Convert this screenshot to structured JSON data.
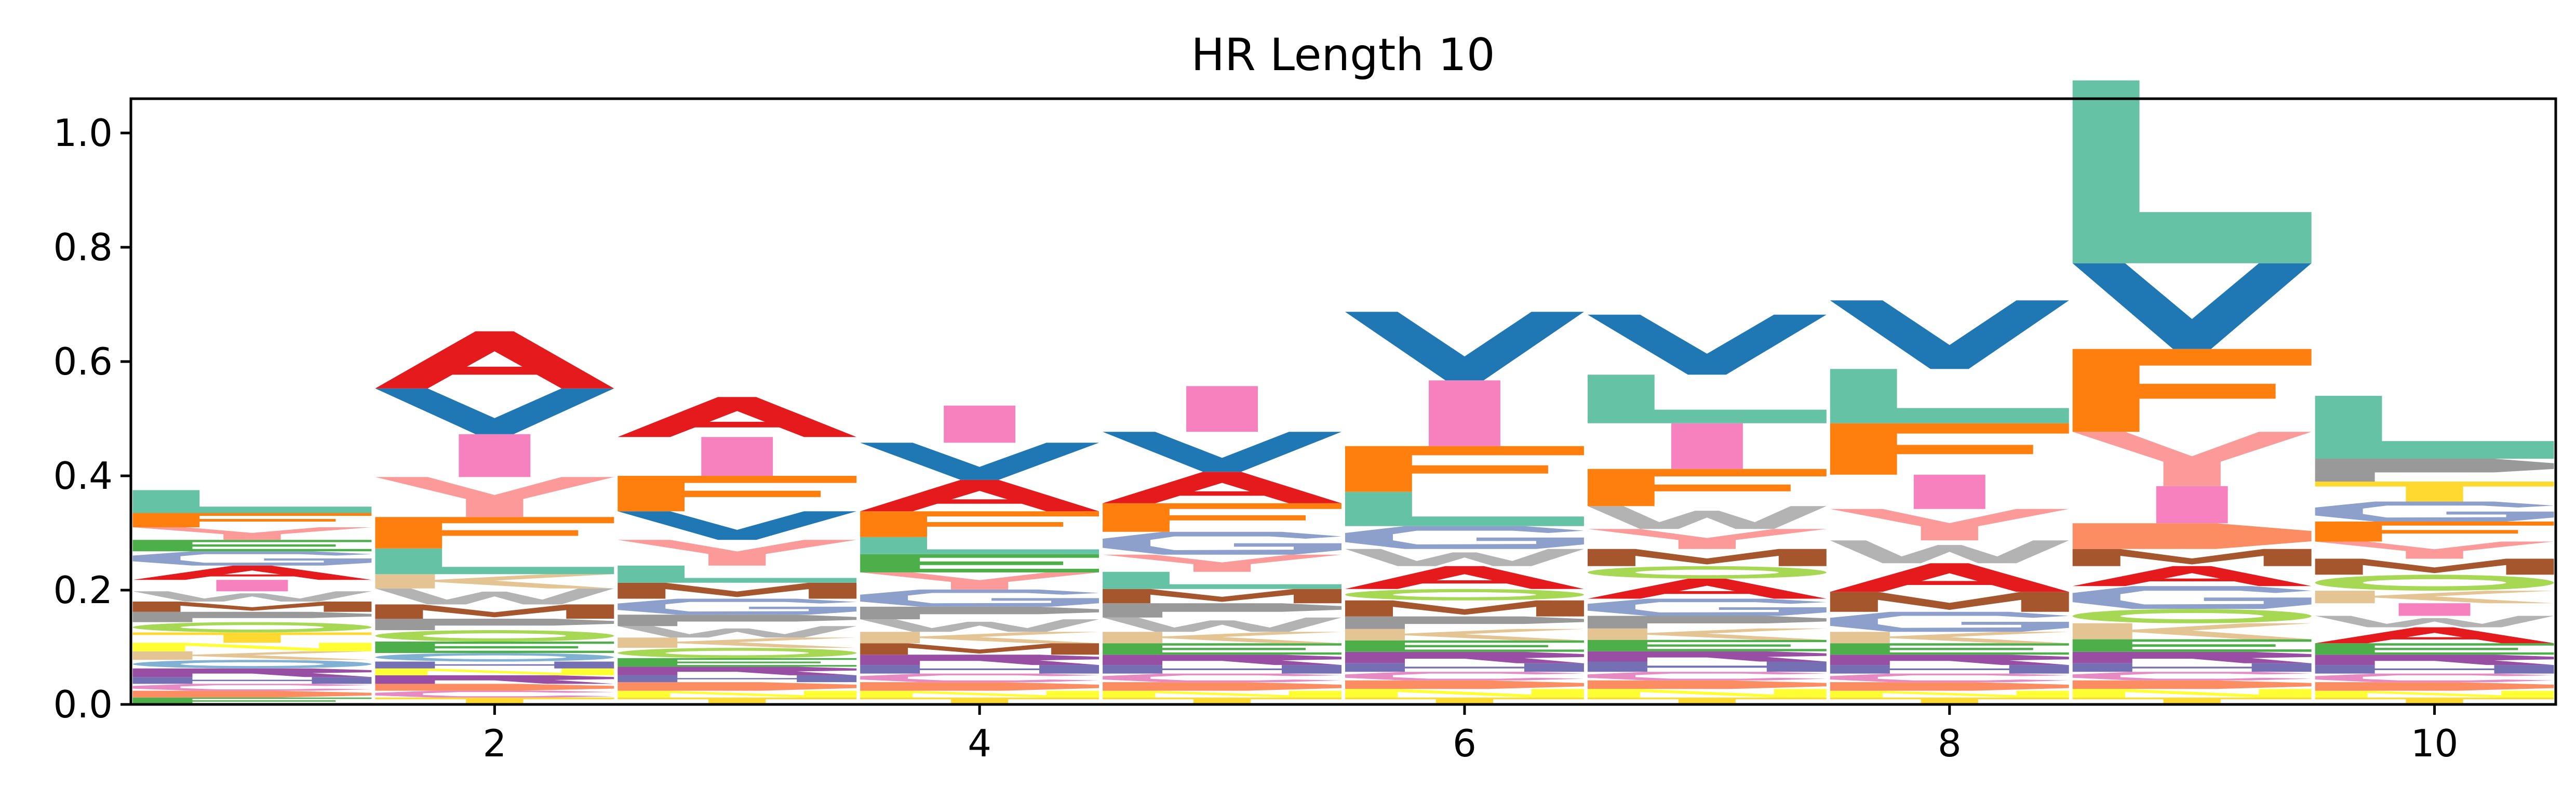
{
  "chart_data": {
    "type": "sequence-logo",
    "title": "HR Length 10",
    "xlabel": "",
    "ylabel": "",
    "xlim": [
      0.5,
      10.5
    ],
    "ylim": [
      0.0,
      1.06
    ],
    "x_ticks": [
      2,
      4,
      6,
      8,
      10
    ],
    "y_ticks": [
      0.0,
      0.2,
      0.4,
      0.6,
      0.8,
      1.0
    ],
    "y_tick_labels": [
      "0.0",
      "0.2",
      "0.4",
      "0.6",
      "0.8",
      "1.0"
    ],
    "grid": false,
    "colors": {
      "A": "#e41a1c",
      "V": "#1f77b4",
      "L": "#66c2a5",
      "F": "#ff7f0e",
      "I": "#f781bf",
      "Y": "#fb9a99",
      "W": "#b3b3b3",
      "M": "#a6562d",
      "G": "#8da0cb",
      "P": "#999999",
      "S": "#a6d854",
      "T": "#ffd92f",
      "R": "#984ea3",
      "K": "#e5c494",
      "E": "#4daf4a",
      "D": "#fc8d62",
      "C": "#e78ac3",
      "N": "#ffff33",
      "H": "#7570b3",
      "Q": "#80b1d3"
    },
    "positions": [
      {
        "x": 1,
        "letters": [
          {
            "aa": "E",
            "height": 0.012
          },
          {
            "aa": "D",
            "height": 0.012
          },
          {
            "aa": "C",
            "height": 0.012
          },
          {
            "aa": "H",
            "height": 0.012
          },
          {
            "aa": "R",
            "height": 0.015
          },
          {
            "aa": "Q",
            "height": 0.015
          },
          {
            "aa": "K",
            "height": 0.015
          },
          {
            "aa": "N",
            "height": 0.015
          },
          {
            "aa": "T",
            "height": 0.018
          },
          {
            "aa": "S",
            "height": 0.018
          },
          {
            "aa": "P",
            "height": 0.018
          },
          {
            "aa": "M",
            "height": 0.018
          },
          {
            "aa": "W",
            "height": 0.018
          },
          {
            "aa": "I",
            "height": 0.02
          },
          {
            "aa": "A",
            "height": 0.025
          },
          {
            "aa": "G",
            "height": 0.025
          },
          {
            "aa": "E",
            "height": 0.02
          },
          {
            "aa": "Y",
            "height": 0.022
          },
          {
            "aa": "F",
            "height": 0.025
          },
          {
            "aa": "L",
            "height": 0.04
          }
        ]
      },
      {
        "x": 2,
        "letters": [
          {
            "aa": "T",
            "height": 0.012
          },
          {
            "aa": "C",
            "height": 0.012
          },
          {
            "aa": "D",
            "height": 0.012
          },
          {
            "aa": "R",
            "height": 0.015
          },
          {
            "aa": "N",
            "height": 0.012
          },
          {
            "aa": "H",
            "height": 0.012
          },
          {
            "aa": "Q",
            "height": 0.015
          },
          {
            "aa": "E",
            "height": 0.02
          },
          {
            "aa": "S",
            "height": 0.02
          },
          {
            "aa": "P",
            "height": 0.02
          },
          {
            "aa": "M",
            "height": 0.025
          },
          {
            "aa": "W",
            "height": 0.028
          },
          {
            "aa": "K",
            "height": 0.025
          },
          {
            "aa": "L",
            "height": 0.045
          },
          {
            "aa": "F",
            "height": 0.055
          },
          {
            "aa": "Y",
            "height": 0.07
          },
          {
            "aa": "I",
            "height": 0.075
          },
          {
            "aa": "V",
            "height": 0.08
          },
          {
            "aa": "A",
            "height": 0.1
          }
        ]
      },
      {
        "x": 3,
        "letters": [
          {
            "aa": "T",
            "height": 0.012
          },
          {
            "aa": "N",
            "height": 0.012
          },
          {
            "aa": "D",
            "height": 0.015
          },
          {
            "aa": "H",
            "height": 0.012
          },
          {
            "aa": "R",
            "height": 0.015
          },
          {
            "aa": "E",
            "height": 0.015
          },
          {
            "aa": "S",
            "height": 0.018
          },
          {
            "aa": "K",
            "height": 0.018
          },
          {
            "aa": "W",
            "height": 0.02
          },
          {
            "aa": "P",
            "height": 0.02
          },
          {
            "aa": "G",
            "height": 0.028
          },
          {
            "aa": "M",
            "height": 0.028
          },
          {
            "aa": "L",
            "height": 0.03
          },
          {
            "aa": "Y",
            "height": 0.045
          },
          {
            "aa": "V",
            "height": 0.05
          },
          {
            "aa": "F",
            "height": 0.062
          },
          {
            "aa": "I",
            "height": 0.068
          },
          {
            "aa": "A",
            "height": 0.07
          }
        ]
      },
      {
        "x": 4,
        "letters": [
          {
            "aa": "T",
            "height": 0.012
          },
          {
            "aa": "N",
            "height": 0.012
          },
          {
            "aa": "D",
            "height": 0.015
          },
          {
            "aa": "C",
            "height": 0.015
          },
          {
            "aa": "H",
            "height": 0.015
          },
          {
            "aa": "R",
            "height": 0.018
          },
          {
            "aa": "M",
            "height": 0.02
          },
          {
            "aa": "K",
            "height": 0.02
          },
          {
            "aa": "W",
            "height": 0.022
          },
          {
            "aa": "P",
            "height": 0.022
          },
          {
            "aa": "G",
            "height": 0.03
          },
          {
            "aa": "Y",
            "height": 0.03
          },
          {
            "aa": "E",
            "height": 0.032
          },
          {
            "aa": "L",
            "height": 0.03
          },
          {
            "aa": "F",
            "height": 0.045
          },
          {
            "aa": "A",
            "height": 0.055
          },
          {
            "aa": "V",
            "height": 0.065
          },
          {
            "aa": "I",
            "height": 0.065
          }
        ]
      },
      {
        "x": 5,
        "letters": [
          {
            "aa": "T",
            "height": 0.012
          },
          {
            "aa": "N",
            "height": 0.012
          },
          {
            "aa": "D",
            "height": 0.015
          },
          {
            "aa": "C",
            "height": 0.015
          },
          {
            "aa": "H",
            "height": 0.015
          },
          {
            "aa": "R",
            "height": 0.018
          },
          {
            "aa": "E",
            "height": 0.02
          },
          {
            "aa": "K",
            "height": 0.02
          },
          {
            "aa": "W",
            "height": 0.025
          },
          {
            "aa": "P",
            "height": 0.025
          },
          {
            "aa": "M",
            "height": 0.025
          },
          {
            "aa": "L",
            "height": 0.03
          },
          {
            "aa": "Y",
            "height": 0.03
          },
          {
            "aa": "G",
            "height": 0.04
          },
          {
            "aa": "F",
            "height": 0.05
          },
          {
            "aa": "A",
            "height": 0.055
          },
          {
            "aa": "V",
            "height": 0.07
          },
          {
            "aa": "I",
            "height": 0.08
          }
        ]
      },
      {
        "x": 6,
        "letters": [
          {
            "aa": "T",
            "height": 0.012
          },
          {
            "aa": "N",
            "height": 0.015
          },
          {
            "aa": "D",
            "height": 0.015
          },
          {
            "aa": "C",
            "height": 0.015
          },
          {
            "aa": "H",
            "height": 0.015
          },
          {
            "aa": "R",
            "height": 0.02
          },
          {
            "aa": "E",
            "height": 0.02
          },
          {
            "aa": "K",
            "height": 0.02
          },
          {
            "aa": "P",
            "height": 0.022
          },
          {
            "aa": "M",
            "height": 0.028
          },
          {
            "aa": "S",
            "height": 0.02
          },
          {
            "aa": "A",
            "height": 0.04
          },
          {
            "aa": "W",
            "height": 0.03
          },
          {
            "aa": "G",
            "height": 0.04
          },
          {
            "aa": "L",
            "height": 0.06
          },
          {
            "aa": "F",
            "height": 0.08
          },
          {
            "aa": "I",
            "height": 0.115
          },
          {
            "aa": "V",
            "height": 0.12
          }
        ]
      },
      {
        "x": 7,
        "letters": [
          {
            "aa": "T",
            "height": 0.012
          },
          {
            "aa": "N",
            "height": 0.015
          },
          {
            "aa": "D",
            "height": 0.015
          },
          {
            "aa": "C",
            "height": 0.015
          },
          {
            "aa": "H",
            "height": 0.018
          },
          {
            "aa": "R",
            "height": 0.018
          },
          {
            "aa": "E",
            "height": 0.02
          },
          {
            "aa": "K",
            "height": 0.02
          },
          {
            "aa": "P",
            "height": 0.022
          },
          {
            "aa": "G",
            "height": 0.03
          },
          {
            "aa": "A",
            "height": 0.035
          },
          {
            "aa": "S",
            "height": 0.022
          },
          {
            "aa": "M",
            "height": 0.03
          },
          {
            "aa": "Y",
            "height": 0.035
          },
          {
            "aa": "W",
            "height": 0.04
          },
          {
            "aa": "F",
            "height": 0.065
          },
          {
            "aa": "I",
            "height": 0.08
          },
          {
            "aa": "L",
            "height": 0.085
          },
          {
            "aa": "V",
            "height": 0.105
          }
        ]
      },
      {
        "x": 8,
        "letters": [
          {
            "aa": "T",
            "height": 0.012
          },
          {
            "aa": "N",
            "height": 0.012
          },
          {
            "aa": "D",
            "height": 0.015
          },
          {
            "aa": "C",
            "height": 0.015
          },
          {
            "aa": "H",
            "height": 0.015
          },
          {
            "aa": "R",
            "height": 0.018
          },
          {
            "aa": "E",
            "height": 0.02
          },
          {
            "aa": "K",
            "height": 0.02
          },
          {
            "aa": "G",
            "height": 0.035
          },
          {
            "aa": "M",
            "height": 0.035
          },
          {
            "aa": "A",
            "height": 0.05
          },
          {
            "aa": "W",
            "height": 0.04
          },
          {
            "aa": "Y",
            "height": 0.055
          },
          {
            "aa": "I",
            "height": 0.06
          },
          {
            "aa": "F",
            "height": 0.09
          },
          {
            "aa": "L",
            "height": 0.095
          },
          {
            "aa": "V",
            "height": 0.12
          }
        ]
      },
      {
        "x": 9,
        "letters": [
          {
            "aa": "T",
            "height": 0.012
          },
          {
            "aa": "N",
            "height": 0.015
          },
          {
            "aa": "D",
            "height": 0.015
          },
          {
            "aa": "C",
            "height": 0.015
          },
          {
            "aa": "H",
            "height": 0.015
          },
          {
            "aa": "R",
            "height": 0.02
          },
          {
            "aa": "E",
            "height": 0.022
          },
          {
            "aa": "K",
            "height": 0.028
          },
          {
            "aa": "S",
            "height": 0.025
          },
          {
            "aa": "G",
            "height": 0.04
          },
          {
            "aa": "A",
            "height": 0.035
          },
          {
            "aa": "M",
            "height": 0.03
          },
          {
            "aa": "D",
            "height": 0.045
          },
          {
            "aa": "I",
            "height": 0.065
          },
          {
            "aa": "Y",
            "height": 0.095
          },
          {
            "aa": "F",
            "height": 0.145
          },
          {
            "aa": "V",
            "height": 0.15
          },
          {
            "aa": "L",
            "height": 0.32
          }
        ]
      },
      {
        "x": 10,
        "letters": [
          {
            "aa": "T",
            "height": 0.012
          },
          {
            "aa": "N",
            "height": 0.012
          },
          {
            "aa": "D",
            "height": 0.015
          },
          {
            "aa": "C",
            "height": 0.015
          },
          {
            "aa": "H",
            "height": 0.015
          },
          {
            "aa": "R",
            "height": 0.018
          },
          {
            "aa": "E",
            "height": 0.02
          },
          {
            "aa": "A",
            "height": 0.028
          },
          {
            "aa": "W",
            "height": 0.02
          },
          {
            "aa": "I",
            "height": 0.022
          },
          {
            "aa": "K",
            "height": 0.022
          },
          {
            "aa": "S",
            "height": 0.028
          },
          {
            "aa": "M",
            "height": 0.028
          },
          {
            "aa": "Y",
            "height": 0.03
          },
          {
            "aa": "F",
            "height": 0.035
          },
          {
            "aa": "G",
            "height": 0.035
          },
          {
            "aa": "T",
            "height": 0.035
          },
          {
            "aa": "P",
            "height": 0.04
          },
          {
            "aa": "L",
            "height": 0.11
          }
        ]
      }
    ]
  }
}
